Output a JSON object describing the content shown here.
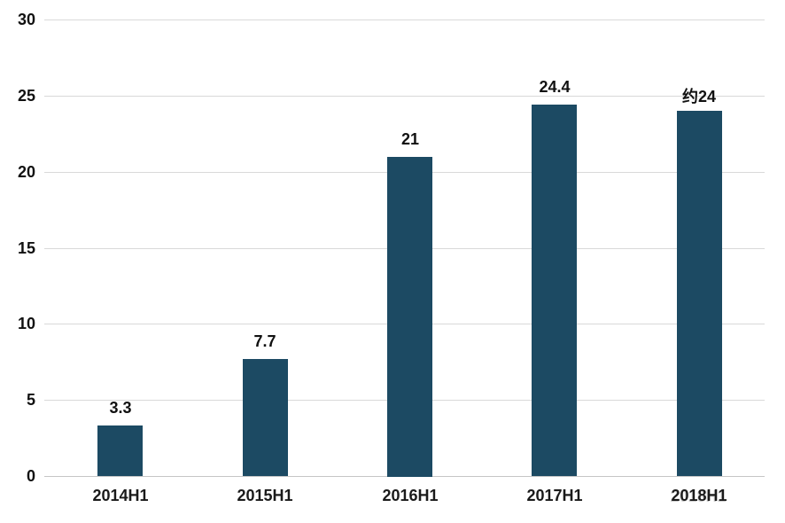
{
  "chart_data": {
    "type": "bar",
    "title": "",
    "xlabel": "",
    "ylabel": "",
    "categories": [
      "2014H1",
      "2015H1",
      "2016H1",
      "2017H1",
      "2018H1"
    ],
    "values": [
      3.3,
      7.7,
      21,
      24.4,
      24
    ],
    "value_labels": [
      "3.3",
      "7.7",
      "21",
      "24.4",
      "约24"
    ],
    "ytick_labels": [
      "0",
      "5",
      "10",
      "15",
      "20",
      "25",
      "30"
    ],
    "yticks": [
      0,
      5,
      10,
      15,
      20,
      25,
      30
    ],
    "ylim": [
      0,
      30
    ],
    "grid": true,
    "legend": false,
    "bar_color": "#1c4a63",
    "gridline_color": "#d9d9d9",
    "text_color": "#111111",
    "background": "#ffffff"
  }
}
